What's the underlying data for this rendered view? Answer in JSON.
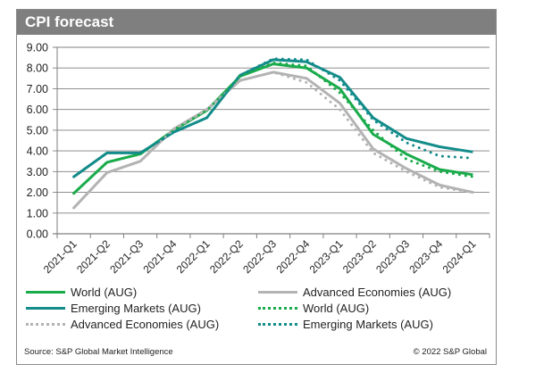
{
  "chart_data": {
    "type": "line",
    "title": "CPI forecast",
    "xlabel": "",
    "ylabel": "",
    "ylim": [
      0,
      9
    ],
    "yticks": [
      "0.00",
      "1.00",
      "2.00",
      "3.00",
      "4.00",
      "5.00",
      "6.00",
      "7.00",
      "8.00",
      "9.00"
    ],
    "grid": true,
    "legend_position": "bottom",
    "categories": [
      "2021-Q1",
      "2021-Q2",
      "2021-Q3",
      "2021-Q4",
      "2022-Q1",
      "2022-Q2",
      "2022-Q3",
      "2022-Q4",
      "2023-Q1",
      "2023-Q2",
      "2023-Q3",
      "2023-Q4",
      "2024-Q1"
    ],
    "series": [
      {
        "name": "World (AUG)",
        "style": "solid",
        "color": "#1aab4b",
        "values": [
          1.95,
          3.45,
          3.85,
          5.0,
          5.95,
          7.6,
          8.2,
          8.0,
          7.0,
          4.8,
          3.85,
          3.1,
          2.85
        ]
      },
      {
        "name": "Advanced Economies (AUG)",
        "style": "solid",
        "color": "#b3b3b3",
        "values": [
          1.25,
          2.95,
          3.5,
          5.05,
          6.0,
          7.4,
          7.8,
          7.5,
          6.3,
          4.1,
          3.15,
          2.35,
          2.0
        ]
      },
      {
        "name": "Emerging Markets (AUG)",
        "style": "solid",
        "color": "#138c8a",
        "values": [
          2.75,
          3.9,
          3.9,
          4.9,
          5.6,
          7.65,
          8.4,
          8.3,
          7.55,
          5.6,
          4.6,
          4.2,
          3.95
        ]
      },
      {
        "name": "World (AUG)",
        "style": "dotted",
        "color": "#1aab4b",
        "values": [
          1.95,
          3.45,
          3.85,
          5.0,
          5.95,
          7.6,
          8.25,
          8.1,
          6.8,
          5.0,
          3.6,
          3.0,
          2.75
        ]
      },
      {
        "name": "Advanced Economies (AUG)",
        "style": "dotted",
        "color": "#b3b3b3",
        "values": [
          1.25,
          2.95,
          3.5,
          5.05,
          6.0,
          7.4,
          7.8,
          7.3,
          6.0,
          3.9,
          3.0,
          2.25,
          2.0
        ]
      },
      {
        "name": "Emerging Markets (AUG)",
        "style": "dotted",
        "color": "#138c8a",
        "values": [
          2.75,
          3.9,
          3.9,
          4.9,
          5.6,
          7.65,
          8.45,
          8.4,
          7.4,
          5.5,
          4.4,
          3.75,
          3.65
        ]
      }
    ],
    "legend": [
      {
        "label": "World (AUG)",
        "style": "solid",
        "color": "#1aab4b"
      },
      {
        "label": "Advanced Economies (AUG)",
        "style": "solid",
        "color": "#b3b3b3"
      },
      {
        "label": "Emerging Markets (AUG)",
        "style": "solid",
        "color": "#138c8a"
      },
      {
        "label": "World (AUG)",
        "style": "dotted",
        "color": "#1aab4b"
      },
      {
        "label": "Advanced Economies (AUG)",
        "style": "dotted",
        "color": "#b3b3b3"
      },
      {
        "label": "Emerging Markets (AUG)",
        "style": "dotted",
        "color": "#138c8a"
      }
    ]
  },
  "footer": {
    "source": "Source: S&P Global Market Intelligence",
    "copyright": "© 2022 S&P Global"
  },
  "colors": {
    "title_bar": "#7f7f7f",
    "gridline": "#7f7f7f"
  }
}
